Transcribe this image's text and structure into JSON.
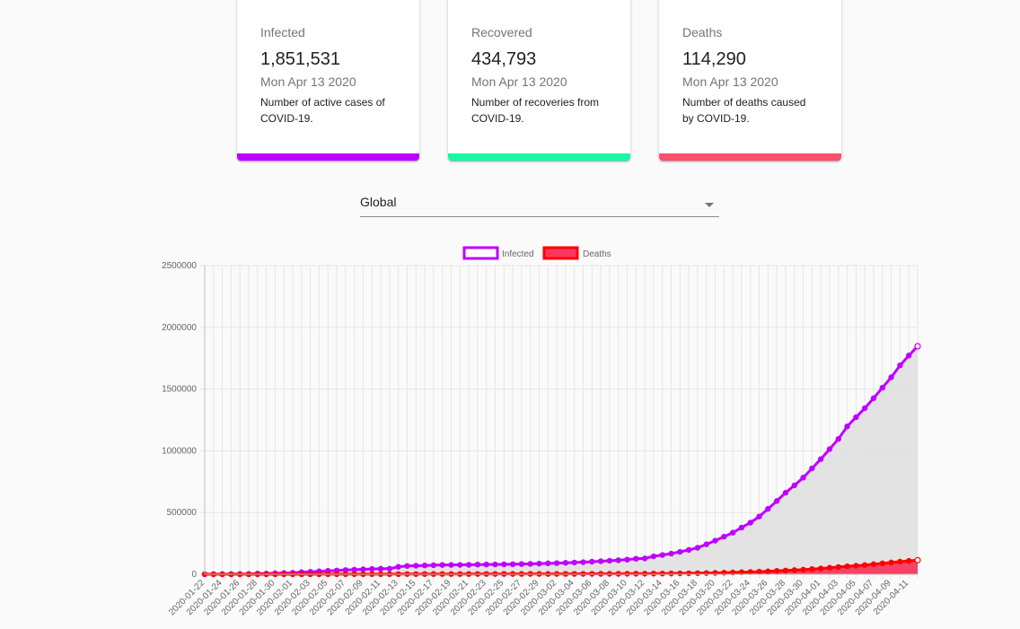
{
  "cards": [
    {
      "title": "Infected",
      "value": "1,851,531",
      "date": "Mon Apr 13 2020",
      "description": "Number of active cases of COVID-19.",
      "color": "#bf00ff"
    },
    {
      "title": "Recovered",
      "value": "434,793",
      "date": "Mon Apr 13 2020",
      "description": "Number of recoveries from COVID-19.",
      "color": "#16f9a0"
    },
    {
      "title": "Deaths",
      "value": "114,290",
      "date": "Mon Apr 13 2020",
      "description": "Number of deaths caused by COVID-19.",
      "color": "#ff4f6e"
    }
  ],
  "country_select": {
    "value": "Global"
  },
  "chart_data": {
    "type": "line",
    "legend": [
      "Infected",
      "Deaths"
    ],
    "legend_position": "top",
    "grid": true,
    "ylim": [
      0,
      2500000
    ],
    "yticks": [
      "2500000",
      "2000000",
      "1500000",
      "1000000",
      "500000",
      "0"
    ],
    "x": [
      "2020-01-22",
      "2020-01-23",
      "2020-01-24",
      "2020-01-25",
      "2020-01-26",
      "2020-01-27",
      "2020-01-28",
      "2020-01-29",
      "2020-01-30",
      "2020-01-31",
      "2020-02-01",
      "2020-02-02",
      "2020-02-03",
      "2020-02-04",
      "2020-02-05",
      "2020-02-06",
      "2020-02-07",
      "2020-02-08",
      "2020-02-09",
      "2020-02-10",
      "2020-02-11",
      "2020-02-12",
      "2020-02-13",
      "2020-02-14",
      "2020-02-15",
      "2020-02-16",
      "2020-02-17",
      "2020-02-18",
      "2020-02-19",
      "2020-02-20",
      "2020-02-21",
      "2020-02-22",
      "2020-02-23",
      "2020-02-24",
      "2020-02-25",
      "2020-02-26",
      "2020-02-27",
      "2020-02-28",
      "2020-02-29",
      "2020-03-01",
      "2020-03-02",
      "2020-03-03",
      "2020-03-04",
      "2020-03-05",
      "2020-03-06",
      "2020-03-07",
      "2020-03-08",
      "2020-03-09",
      "2020-03-10",
      "2020-03-11",
      "2020-03-12",
      "2020-03-13",
      "2020-03-14",
      "2020-03-15",
      "2020-03-16",
      "2020-03-17",
      "2020-03-18",
      "2020-03-19",
      "2020-03-20",
      "2020-03-21",
      "2020-03-22",
      "2020-03-23",
      "2020-03-24",
      "2020-03-25",
      "2020-03-26",
      "2020-03-27",
      "2020-03-28",
      "2020-03-29",
      "2020-03-30",
      "2020-03-31",
      "2020-04-01",
      "2020-04-02",
      "2020-04-03",
      "2020-04-04",
      "2020-04-05",
      "2020-04-06",
      "2020-04-07",
      "2020-04-08",
      "2020-04-09",
      "2020-04-10",
      "2020-04-11",
      "2020-04-12"
    ],
    "xtick_labels": [
      "2020-01-22",
      "2020-01-24",
      "2020-01-26",
      "2020-01-28",
      "2020-01-30",
      "2020-02-01",
      "2020-02-03",
      "2020-02-05",
      "2020-02-07",
      "2020-02-09",
      "2020-02-11",
      "2020-02-13",
      "2020-02-15",
      "2020-02-17",
      "2020-02-19",
      "2020-02-21",
      "2020-02-23",
      "2020-02-25",
      "2020-02-27",
      "2020-02-29",
      "2020-03-02",
      "2020-03-04",
      "2020-03-06",
      "2020-03-08",
      "2020-03-10",
      "2020-03-12",
      "2020-03-14",
      "2020-03-16",
      "2020-03-18",
      "2020-03-20",
      "2020-03-22",
      "2020-03-24",
      "2020-03-26",
      "2020-03-28",
      "2020-03-30",
      "2020-04-01",
      "2020-04-03",
      "2020-04-05",
      "2020-04-07",
      "2020-04-09",
      "2020-04-11"
    ],
    "series": [
      {
        "name": "Infected",
        "color": "#bf00ff",
        "fill": "#e0e0e0",
        "values": [
          555,
          654,
          941,
          1434,
          2118,
          2927,
          5578,
          6166,
          8234,
          9927,
          12038,
          16787,
          19881,
          23892,
          27635,
          30794,
          34391,
          37120,
          40150,
          42762,
          44802,
          45221,
          60368,
          66885,
          69030,
          71224,
          73258,
          75136,
          75639,
          76197,
          76819,
          78572,
          78958,
          79561,
          80406,
          81388,
          82746,
          84112,
          86011,
          88369,
          90306,
          92840,
          95120,
          97886,
          101800,
          105847,
          109821,
          113590,
          118620,
          125875,
          128352,
          145205,
          156101,
          167454,
          181574,
          197102,
          214821,
          242570,
          272208,
          304507,
          336953,
          378235,
          418045,
          467653,
          529591,
          593291,
          660706,
          720117,
          782365,
          857487,
          932605,
          1013466,
          1095917,
          1197405,
          1272115,
          1345101,
          1426096,
          1511104,
          1595350,
          1691719,
          1771514,
          1846680
        ]
      },
      {
        "name": "Deaths",
        "color": "#ff0000",
        "fill": "#f7395f",
        "values": [
          17,
          18,
          26,
          42,
          56,
          82,
          131,
          133,
          171,
          213,
          259,
          362,
          426,
          492,
          564,
          634,
          719,
          806,
          906,
          1013,
          1113,
          1118,
          1371,
          1523,
          1666,
          1770,
          1868,
          2007,
          2122,
          2247,
          2251,
          2458,
          2469,
          2629,
          2708,
          2770,
          2814,
          2872,
          2941,
          2996,
          3085,
          3160,
          3254,
          3348,
          3460,
          3558,
          3802,
          3988,
          4262,
          4615,
          4720,
          5404,
          5819,
          6440,
          7126,
          7905,
          8733,
          9867,
          11299,
          12973,
          14623,
          16497,
          18615,
          21181,
          23970,
          27198,
          30652,
          33925,
          37582,
          42107,
          46809,
          52983,
          58787,
          64606,
          69374,
          74565,
          81865,
          88338,
          95455,
          102525,
          108503,
          114090
        ]
      }
    ]
  }
}
